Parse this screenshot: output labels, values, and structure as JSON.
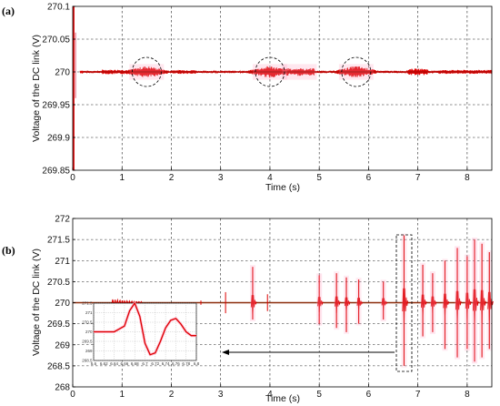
{
  "chart_data": [
    {
      "panel_label": "(a)",
      "type": "line",
      "xlabel": "Time (s)",
      "ylabel": "Voltage of the DC link (V)",
      "xlim": [
        0,
        8.5
      ],
      "ylim": [
        269.85,
        270.1
      ],
      "xticks": [
        "0",
        "1",
        "2",
        "3",
        "4",
        "5",
        "6",
        "7",
        "8"
      ],
      "yticks": [
        "269.85",
        "269.9",
        "269.95",
        "270",
        "270.05",
        "270.1"
      ],
      "ytick_values": [
        269.85,
        269.9,
        269.95,
        270,
        270.05,
        270.1
      ],
      "xtick_values": [
        0,
        1,
        2,
        3,
        4,
        5,
        6,
        7,
        8
      ],
      "grid": true,
      "steady_value": 270,
      "initial_transient": {
        "t": 0.02,
        "min": 269.85,
        "max": 270.1
      },
      "circled_regions_center_time": [
        1.5,
        4.0,
        5.75
      ],
      "series_color": "#dd0000"
    },
    {
      "panel_label": "(b)",
      "type": "line",
      "xlabel": "Time (s)",
      "ylabel": "Voltage of the DC link (V)",
      "xlim": [
        0,
        8.5
      ],
      "ylim": [
        268,
        272
      ],
      "xticks": [
        "0",
        "1",
        "2",
        "3",
        "4",
        "5",
        "6",
        "7",
        "8"
      ],
      "yticks": [
        "268",
        "268.5",
        "269",
        "269.5",
        "270",
        "270.5",
        "271",
        "271.5",
        "272"
      ],
      "ytick_values": [
        268,
        268.5,
        269,
        269.5,
        270,
        270.5,
        271,
        271.5,
        272
      ],
      "xtick_values": [
        0,
        1,
        2,
        3,
        4,
        5,
        6,
        7,
        8
      ],
      "grid": true,
      "steady_value": 270,
      "spikes": [
        {
          "t": 3.65,
          "min": 269.6,
          "max": 270.85
        },
        {
          "t": 5.0,
          "min": 269.5,
          "max": 270.65
        },
        {
          "t": 5.35,
          "min": 269.4,
          "max": 270.7
        },
        {
          "t": 5.55,
          "min": 269.3,
          "max": 270.6
        },
        {
          "t": 5.8,
          "min": 269.5,
          "max": 270.55
        },
        {
          "t": 6.3,
          "min": 269.6,
          "max": 270.5
        },
        {
          "t": 6.72,
          "min": 268.5,
          "max": 271.6
        },
        {
          "t": 7.1,
          "min": 269.2,
          "max": 270.9
        },
        {
          "t": 7.3,
          "min": 269.3,
          "max": 270.7
        },
        {
          "t": 7.55,
          "min": 268.9,
          "max": 271.0
        },
        {
          "t": 7.8,
          "min": 268.7,
          "max": 271.3
        },
        {
          "t": 8.0,
          "min": 268.9,
          "max": 271.1
        },
        {
          "t": 8.15,
          "min": 268.6,
          "max": 271.5
        },
        {
          "t": 8.3,
          "min": 268.7,
          "max": 271.4
        },
        {
          "t": 8.45,
          "min": 268.9,
          "max": 271.2
        }
      ],
      "dashed_box_time_range": [
        6.6,
        6.85
      ],
      "series_color": "#dd0000",
      "inset": {
        "type": "line",
        "xticks": [
          "6.6",
          "6.62",
          "6.64",
          "6.66",
          "6.68",
          "6.7",
          "6.72",
          "6.74",
          "6.76",
          "6.78",
          "6.8"
        ],
        "yticks": [
          "268.5",
          "269",
          "269.5",
          "270",
          "270.5",
          "271",
          "271.5"
        ],
        "xlim": [
          6.6,
          6.8
        ],
        "ylim": [
          268.5,
          271.5
        ],
        "x": [
          6.6,
          6.64,
          6.66,
          6.67,
          6.68,
          6.69,
          6.7,
          6.71,
          6.72,
          6.73,
          6.74,
          6.75,
          6.76,
          6.77,
          6.78,
          6.79,
          6.8
        ],
        "y": [
          270,
          270,
          270.3,
          271.1,
          271.5,
          270.8,
          269.4,
          268.8,
          268.9,
          269.5,
          270.2,
          270.6,
          270.7,
          270.4,
          270.0,
          269.8,
          269.8
        ],
        "series_color": "#dd0000"
      }
    }
  ]
}
